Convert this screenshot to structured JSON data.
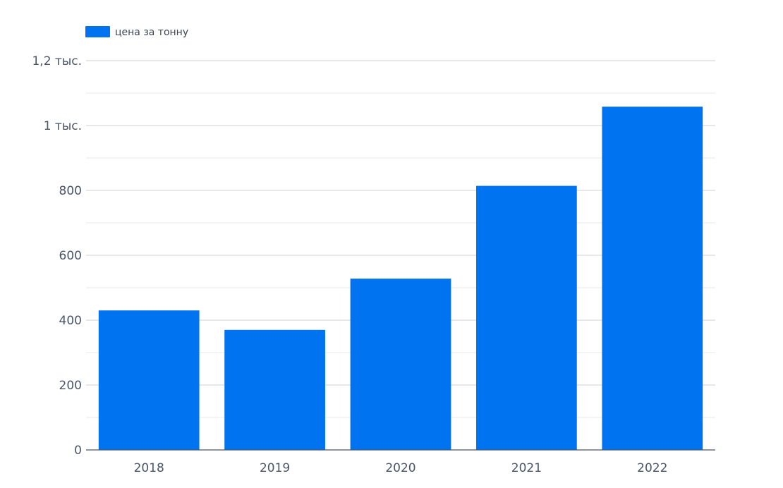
{
  "chart_data": {
    "type": "bar",
    "categories": [
      "2018",
      "2019",
      "2020",
      "2021",
      "2022"
    ],
    "series": [
      {
        "name": "цена за тонну",
        "values": [
          430,
          370,
          528,
          814,
          1058
        ],
        "color": "#0073f1"
      }
    ],
    "ylim": [
      0,
      1200
    ],
    "yticks": [
      0,
      200,
      400,
      600,
      800,
      1000,
      1200
    ],
    "ytick_labels": [
      "0",
      "200",
      "400",
      "600",
      "800",
      "1 тыс.",
      "1,2 тыс."
    ],
    "minor_step": 100,
    "grid": true,
    "legend_position": "top-left",
    "title": "",
    "xlabel": "",
    "ylabel": ""
  }
}
